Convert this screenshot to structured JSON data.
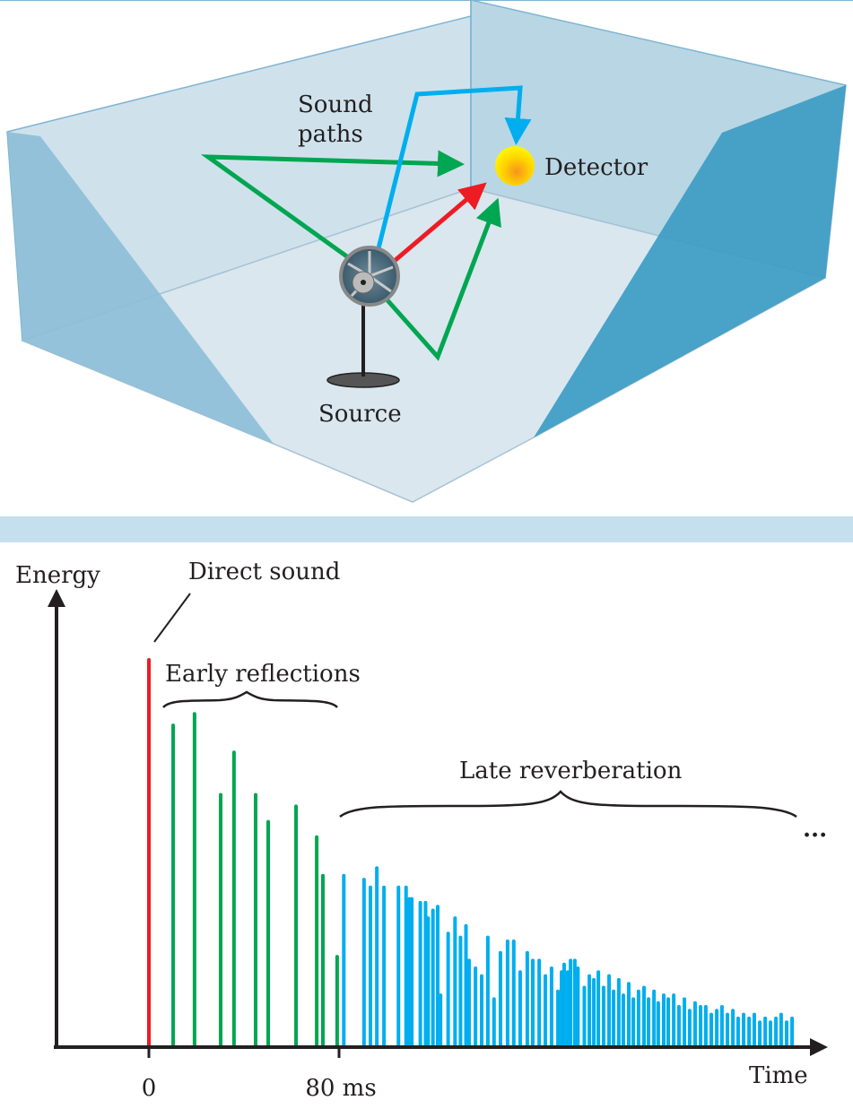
{
  "scene": {
    "sound_paths_label": [
      "Sound",
      "paths"
    ],
    "detector_label": "Detector",
    "source_label": "Source",
    "colors": {
      "direct": "#ed1c24",
      "early": "#00a651",
      "late": "#00aeef",
      "back_wall": "#cfe2ec",
      "side_wall_left": "#8dbed8",
      "side_wall_right": "#3d9cc3"
    }
  },
  "chart_data": {
    "type": "bar",
    "ylabel": "Energy",
    "xlabel": "Time",
    "direct_label": "Direct sound",
    "early_label": "Early reflections",
    "late_label": "Late reverberation",
    "continuation": "...",
    "x_ticks": [
      {
        "value": 0,
        "label": "0"
      },
      {
        "value": 80,
        "label": "80 ms"
      }
    ],
    "xlim": [
      -39,
      290
    ],
    "ylim": [
      0,
      1.2
    ],
    "series": [
      {
        "kind": "direct",
        "color": "#ed1c24",
        "points": [
          [
            0,
            1.0
          ]
        ]
      },
      {
        "kind": "early",
        "color": "#00a651",
        "points": [
          [
            10.2,
            0.83
          ],
          [
            19.2,
            0.86
          ],
          [
            30.2,
            0.65
          ],
          [
            35.8,
            0.76
          ],
          [
            44.9,
            0.65
          ],
          [
            50.2,
            0.58
          ],
          [
            61.9,
            0.62
          ],
          [
            70.6,
            0.54
          ],
          [
            73.2,
            0.44
          ],
          [
            79.2,
            0.23
          ]
        ]
      },
      {
        "kind": "late",
        "color": "#00aeef",
        "points": [
          [
            82,
            0.44
          ],
          [
            90.5,
            0.43
          ],
          [
            93.2,
            0.41
          ],
          [
            95.9,
            0.46
          ],
          [
            98.9,
            0.41
          ],
          [
            105,
            0.41
          ],
          [
            108.2,
            0.41
          ],
          [
            109.6,
            0.38
          ],
          [
            110.6,
            0.38
          ],
          [
            114.2,
            0.37
          ],
          [
            116.4,
            0.37
          ],
          [
            117.5,
            0.33
          ],
          [
            119.5,
            0.35
          ],
          [
            121.5,
            0.36
          ],
          [
            122.7,
            0.13
          ],
          [
            125.9,
            0.29
          ],
          [
            128.8,
            0.33
          ],
          [
            131.1,
            0.28
          ],
          [
            133.4,
            0.31
          ],
          [
            134.7,
            0.22
          ],
          [
            137.4,
            0.2
          ],
          [
            140,
            0.18
          ],
          [
            142.6,
            0.28
          ],
          [
            145.2,
            0.12
          ],
          [
            147.9,
            0.24
          ],
          [
            150.9,
            0.27
          ],
          [
            153.5,
            0.27
          ],
          [
            156.2,
            0.19
          ],
          [
            159.2,
            0.24
          ],
          [
            161.5,
            0.22
          ],
          [
            164.2,
            0.22
          ],
          [
            166.8,
            0.18
          ],
          [
            169.4,
            0.2
          ],
          [
            172.1,
            0.14
          ],
          [
            173.6,
            0.19
          ],
          [
            174.7,
            0.21
          ],
          [
            176.2,
            0.19
          ],
          [
            177.4,
            0.22
          ],
          [
            179.2,
            0.22
          ],
          [
            180.5,
            0.2
          ],
          [
            183.2,
            0.15
          ],
          [
            185.3,
            0.18
          ],
          [
            187.2,
            0.17
          ],
          [
            189.1,
            0.19
          ],
          [
            191.3,
            0.15
          ],
          [
            193.6,
            0.18
          ],
          [
            195.5,
            0.14
          ],
          [
            197.7,
            0.17
          ],
          [
            199.6,
            0.13
          ],
          [
            201.9,
            0.16
          ],
          [
            203.8,
            0.12
          ],
          [
            206,
            0.14
          ],
          [
            208.3,
            0.15
          ],
          [
            210.2,
            0.12
          ],
          [
            212.5,
            0.14
          ],
          [
            214.3,
            0.11
          ],
          [
            216.6,
            0.13
          ],
          [
            218.5,
            0.12
          ],
          [
            220.8,
            0.13
          ],
          [
            223,
            0.1
          ],
          [
            225.3,
            0.12
          ],
          [
            227.5,
            0.09
          ],
          [
            229.8,
            0.11
          ],
          [
            232.1,
            0.1
          ],
          [
            234.3,
            0.1
          ],
          [
            236.6,
            0.08
          ],
          [
            238.9,
            0.09
          ],
          [
            241.1,
            0.1
          ],
          [
            243.4,
            0.08
          ],
          [
            245.7,
            0.09
          ],
          [
            247.9,
            0.07
          ],
          [
            250.2,
            0.08
          ],
          [
            252.5,
            0.07
          ],
          [
            254.7,
            0.08
          ],
          [
            257,
            0.06
          ],
          [
            259.3,
            0.07
          ],
          [
            261.5,
            0.06
          ],
          [
            263.8,
            0.07
          ],
          [
            266,
            0.08
          ],
          [
            268.3,
            0.06
          ],
          [
            270.6,
            0.07
          ]
        ]
      }
    ]
  }
}
